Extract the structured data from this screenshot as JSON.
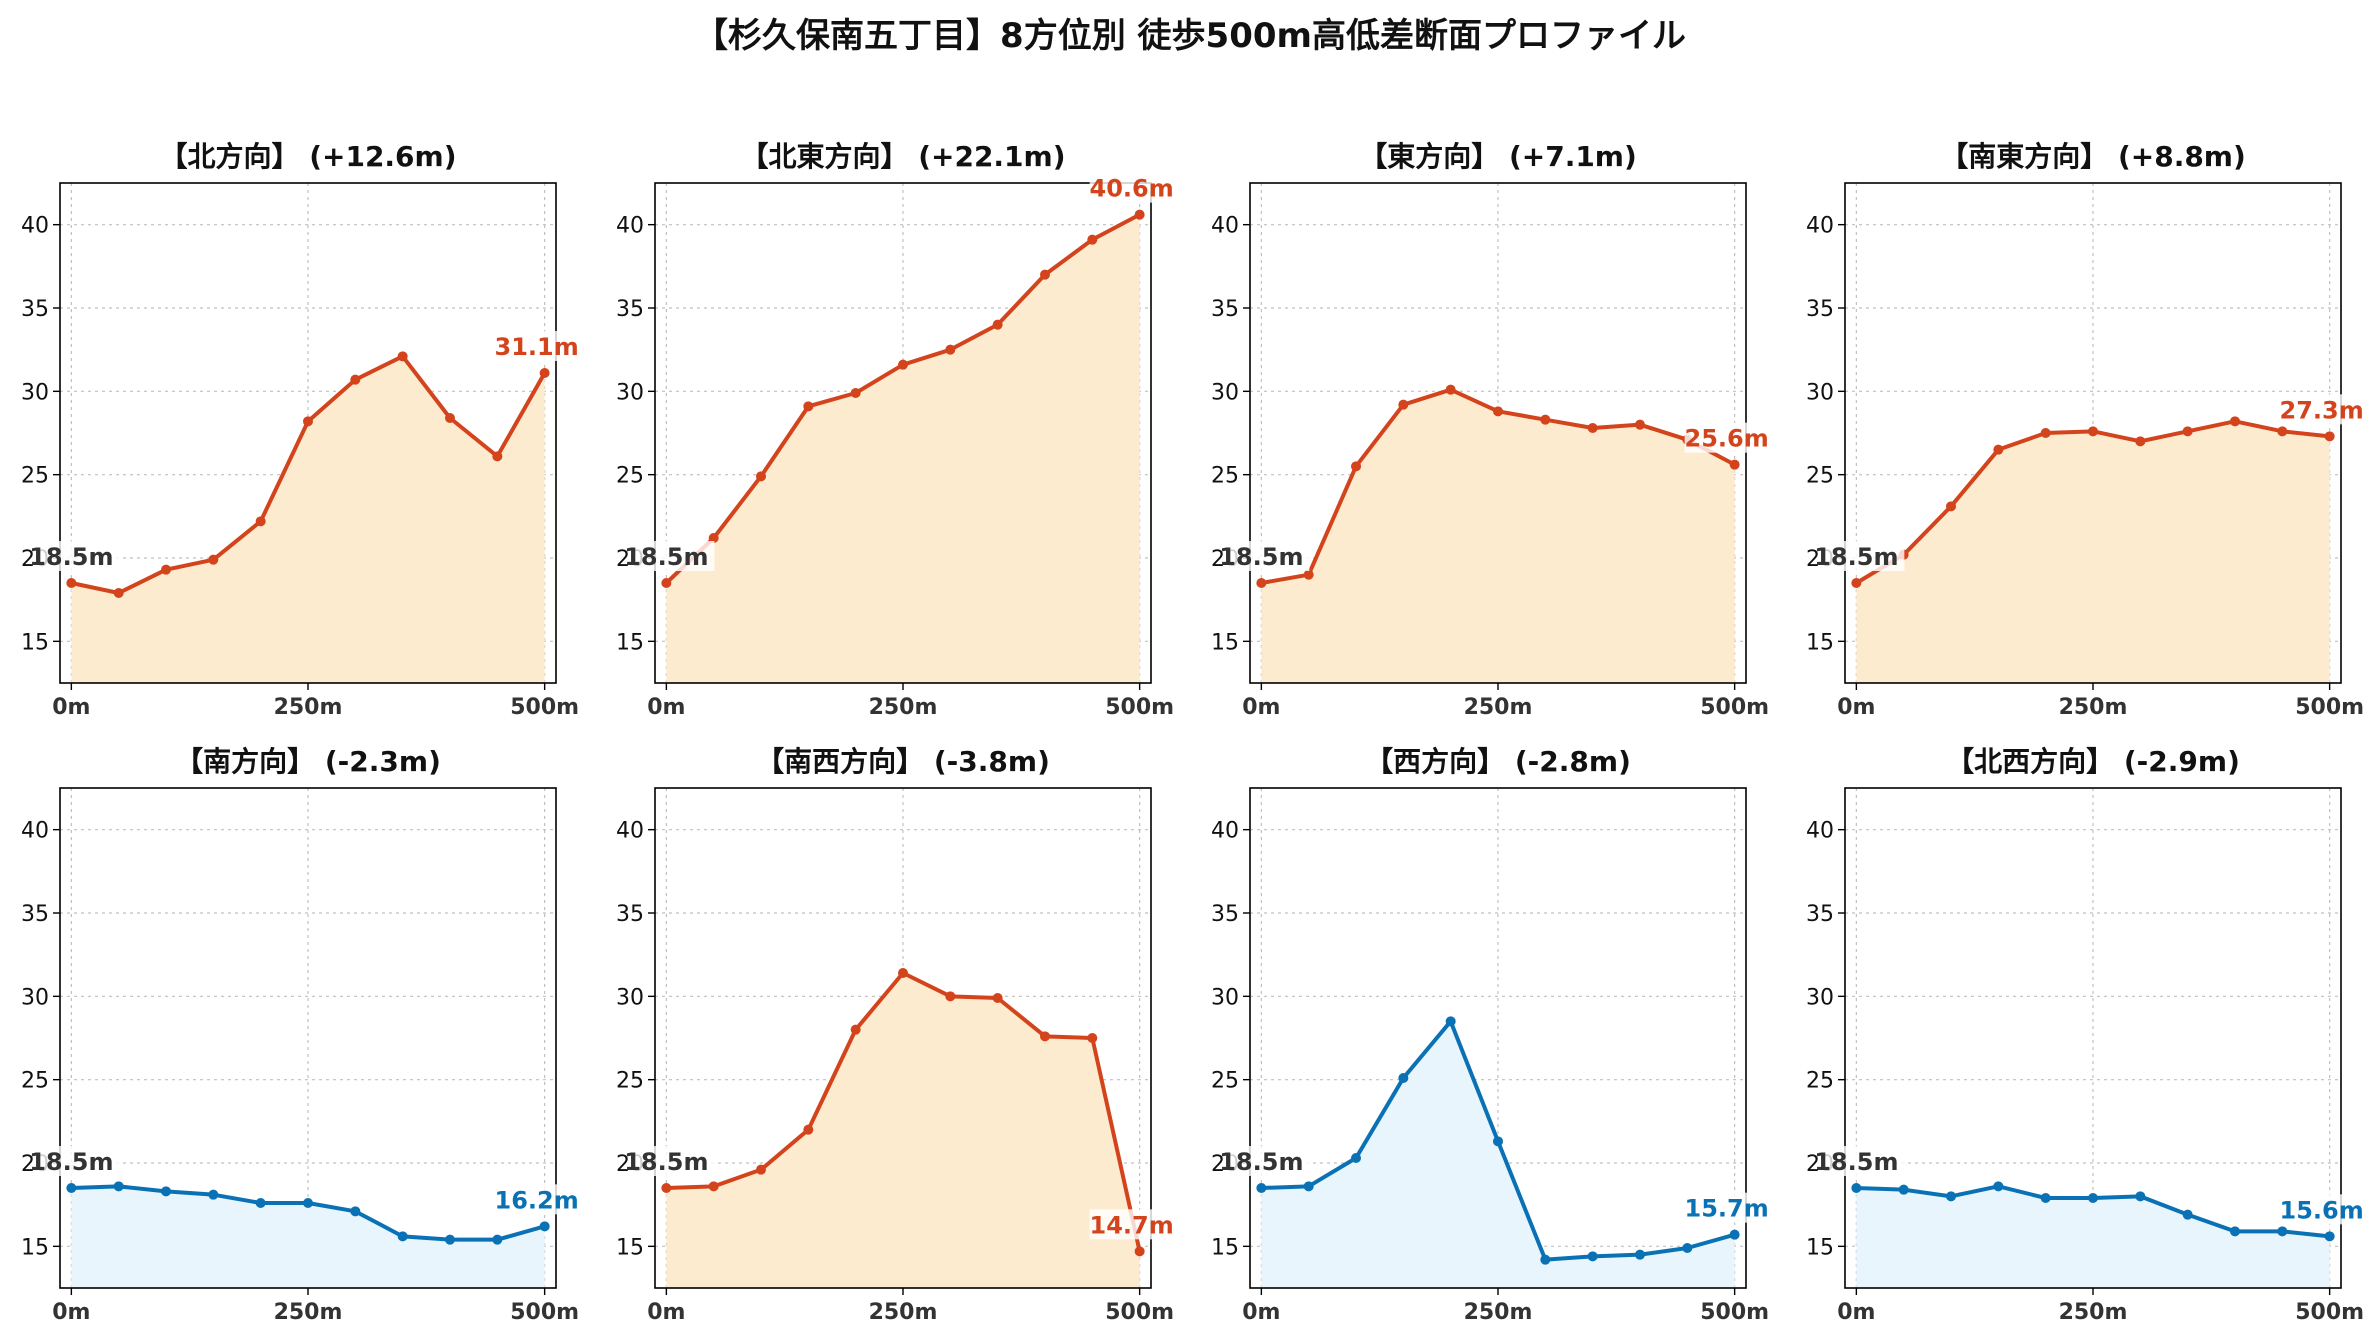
{
  "title": "【杉久保南五丁目】8方位別 徒歩500m高低差断面プロファイル",
  "colors": {
    "up_line": "#d4441c",
    "up_fill": "#fdebd0",
    "down_line": "#0a72b4",
    "down_fill": "#e8f5fc",
    "start_label": "#333333",
    "grid": "#c0c0c0"
  },
  "chart_data": [
    {
      "type": "area",
      "title": "【北方向】 (+12.6m)",
      "trend": "up",
      "x": [
        0,
        50,
        100,
        150,
        200,
        250,
        300,
        350,
        400,
        450,
        500
      ],
      "y": [
        18.5,
        17.9,
        19.3,
        19.9,
        22.2,
        28.2,
        30.7,
        32.1,
        28.4,
        26.1,
        31.1
      ],
      "start_label": "18.5m",
      "end_label": "31.1m"
    },
    {
      "type": "area",
      "title": "【北東方向】 (+22.1m)",
      "trend": "up",
      "x": [
        0,
        50,
        100,
        150,
        200,
        250,
        300,
        350,
        400,
        450,
        500
      ],
      "y": [
        18.5,
        21.2,
        24.9,
        29.1,
        29.9,
        31.6,
        32.5,
        34.0,
        37.0,
        39.1,
        40.6
      ],
      "start_label": "18.5m",
      "end_label": "40.6m"
    },
    {
      "type": "area",
      "title": "【東方向】 (+7.1m)",
      "trend": "up",
      "x": [
        0,
        50,
        100,
        150,
        200,
        250,
        300,
        350,
        400,
        450,
        500
      ],
      "y": [
        18.5,
        19.0,
        25.5,
        29.2,
        30.1,
        28.8,
        28.3,
        27.8,
        28.0,
        27.1,
        25.6
      ],
      "start_label": "18.5m",
      "end_label": "25.6m"
    },
    {
      "type": "area",
      "title": "【南東方向】 (+8.8m)",
      "trend": "up",
      "x": [
        0,
        50,
        100,
        150,
        200,
        250,
        300,
        350,
        400,
        450,
        500
      ],
      "y": [
        18.5,
        20.2,
        23.1,
        26.5,
        27.5,
        27.6,
        27.0,
        27.6,
        28.2,
        27.6,
        27.3
      ],
      "start_label": "18.5m",
      "end_label": "27.3m"
    },
    {
      "type": "area",
      "title": "【南方向】 (-2.3m)",
      "trend": "down",
      "x": [
        0,
        50,
        100,
        150,
        200,
        250,
        300,
        350,
        400,
        450,
        500
      ],
      "y": [
        18.5,
        18.6,
        18.3,
        18.1,
        17.6,
        17.6,
        17.1,
        15.6,
        15.4,
        15.4,
        16.2
      ],
      "start_label": "18.5m",
      "end_label": "16.2m"
    },
    {
      "type": "area",
      "title": "【南西方向】 (-3.8m)",
      "trend": "up",
      "x": [
        0,
        50,
        100,
        150,
        200,
        250,
        300,
        350,
        400,
        450,
        500
      ],
      "y": [
        18.5,
        18.6,
        19.6,
        22.0,
        28.0,
        31.4,
        30.0,
        29.9,
        27.6,
        27.5,
        14.7
      ],
      "start_label": "18.5m",
      "end_label": "14.7m"
    },
    {
      "type": "area",
      "title": "【西方向】 (-2.8m)",
      "trend": "down",
      "x": [
        0,
        50,
        100,
        150,
        200,
        250,
        300,
        350,
        400,
        450,
        500
      ],
      "y": [
        18.5,
        18.6,
        20.3,
        25.1,
        28.5,
        21.3,
        14.2,
        14.4,
        14.5,
        14.9,
        15.7
      ],
      "start_label": "18.5m",
      "end_label": "15.7m"
    },
    {
      "type": "area",
      "title": "【北西方向】 (-2.9m)",
      "trend": "down",
      "x": [
        0,
        50,
        100,
        150,
        200,
        250,
        300,
        350,
        400,
        450,
        500
      ],
      "y": [
        18.5,
        18.4,
        18.0,
        18.6,
        17.9,
        17.9,
        18.0,
        16.9,
        15.9,
        15.9,
        15.6
      ],
      "start_label": "18.5m",
      "end_label": "15.6m"
    }
  ],
  "axes": {
    "ylim": [
      12.5,
      42.5
    ],
    "xlim": [
      -12,
      512
    ],
    "yticks": [
      15,
      20,
      25,
      30,
      35,
      40
    ],
    "ytick_labels": [
      "15",
      "20",
      "25",
      "30",
      "35",
      "40"
    ],
    "xticks": [
      0,
      250,
      500
    ],
    "xtick_labels": [
      "0m",
      "250m",
      "500m"
    ],
    "grid": true
  }
}
